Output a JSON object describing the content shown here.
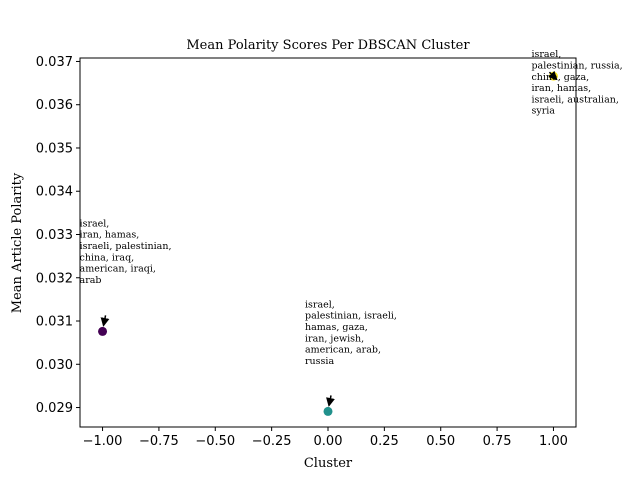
{
  "chart_data": {
    "type": "scatter",
    "title": "Mean Polarity Scores Per DBSCAN Cluster",
    "xlabel": "Cluster",
    "ylabel": "Mean Article Polarity",
    "xlim": [
      -1.1,
      1.1
    ],
    "ylim": [
      0.02855,
      0.03708
    ],
    "xticks": [
      -1.0,
      -0.75,
      -0.5,
      -0.25,
      0.0,
      0.25,
      0.5,
      0.75,
      1.0
    ],
    "xtick_labels": [
      "−1.00",
      "−0.75",
      "−0.50",
      "−0.25",
      "0.00",
      "0.25",
      "0.50",
      "0.75",
      "1.00"
    ],
    "yticks": [
      0.029,
      0.03,
      0.031,
      0.032,
      0.033,
      0.034,
      0.035,
      0.036,
      0.037
    ],
    "ytick_labels": [
      "0.029",
      "0.030",
      "0.031",
      "0.032",
      "0.033",
      "0.034",
      "0.035",
      "0.036",
      "0.037"
    ],
    "grid": false,
    "points": [
      {
        "x": -1,
        "y": 0.03076,
        "color": "#440154",
        "annotation": [
          "israel,",
          "iran, hamas,",
          "israeli, palestinian,",
          "china, iraq,",
          "american, iraqi,",
          "arab"
        ]
      },
      {
        "x": 0,
        "y": 0.02891,
        "color": "#21918c",
        "annotation": [
          "israel,",
          "palestinian, israeli,",
          "hamas, gaza,",
          "iran, jewish,",
          "american, arab,",
          "russia"
        ]
      },
      {
        "x": 1,
        "y": 0.03666,
        "color": "#fde725",
        "annotation": [
          "israel,",
          "palestinian, russia,",
          "china, gaza,",
          "iran, hamas,",
          "israeli, australian,",
          "syria"
        ]
      }
    ]
  }
}
